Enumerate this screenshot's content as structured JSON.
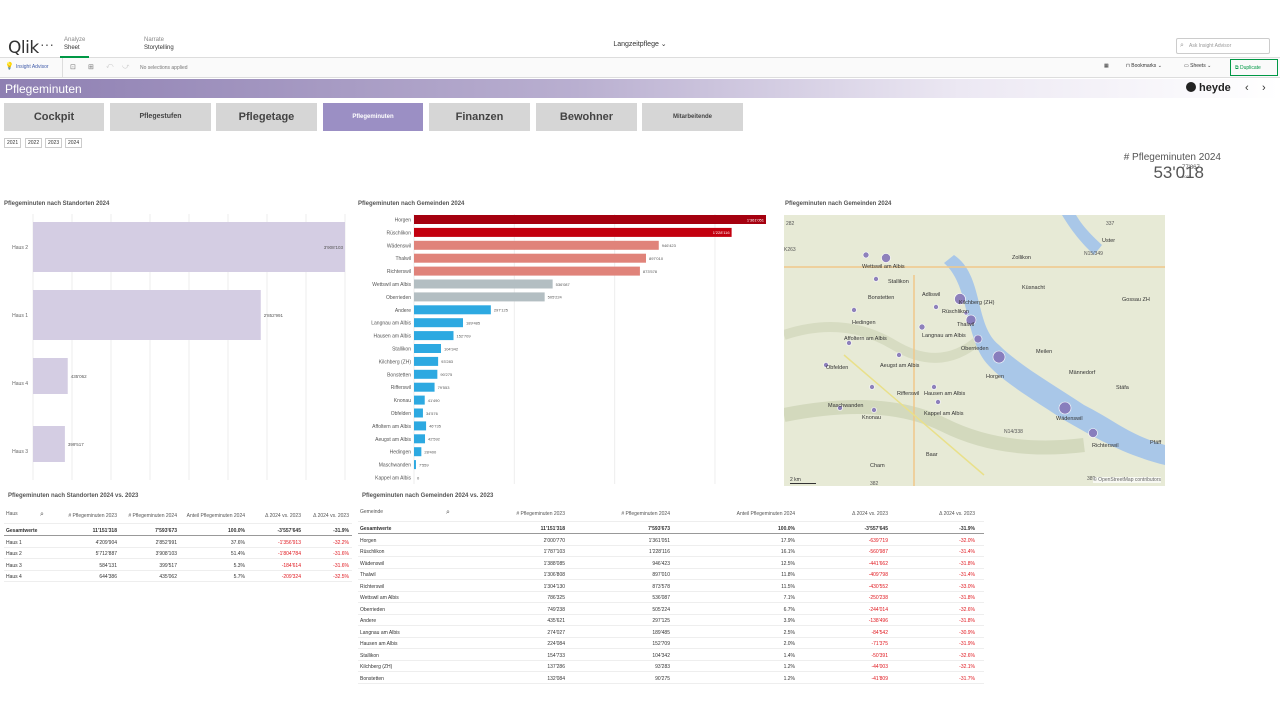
{
  "app": {
    "logo": "Qlik",
    "menu": "···",
    "title": "Langzeitpflege ⌄",
    "search_placeholder": "Ask Insight Advisor",
    "tabs": [
      {
        "top": "Analyze",
        "bottom": "Sheet"
      },
      {
        "top": "Narrate",
        "bottom": "Storytelling"
      }
    ]
  },
  "toolbar": {
    "insight": "Insight Advisor",
    "nosel": "No selections applied",
    "bookmarks": "Bookmarks ⌄",
    "sheets": "Sheets ⌄",
    "duplicate": "Duplicate"
  },
  "sheet": {
    "title": "Pflegeminuten",
    "brand": "heyde",
    "prev": "‹",
    "next": "›"
  },
  "nav": [
    "Cockpit",
    "Pflegestufen",
    "Pflegetage",
    "Pflegeminuten",
    "Finanzen",
    "Bewohner",
    "Mitarbeitende"
  ],
  "years": [
    "2021",
    "2022",
    "2023",
    "2024"
  ],
  "kpi": {
    "title": "# Pflegeminuten 2024",
    "value": "53'018",
    "sup": "77'867",
    "sub": "2023"
  },
  "titles": {
    "standorte": "Pflegeminuten nach Standorten 2024",
    "gemeinden": "Pflegeminuten nach Gemeinden 2024",
    "map": "Pflegeminuten nach Gemeinden 2024",
    "tbl1": "Pflegeminuten nach Standorten 2024 vs. 2023",
    "tbl2": "Pflegeminuten nach Gemeinden 2024 vs. 2023"
  },
  "chart_data": [
    {
      "type": "bar",
      "orientation": "horizontal",
      "title": "Pflegeminuten nach Standorten 2024",
      "categories": [
        "Haus 2",
        "Haus 1",
        "Haus 4",
        "Haus 3"
      ],
      "values": [
        3908103,
        2852991,
        435062,
        399517
      ],
      "labels": [
        "3'908'103",
        "2'852'991",
        "435'062",
        "399'517"
      ]
    },
    {
      "type": "bar",
      "orientation": "horizontal",
      "title": "Pflegeminuten nach Gemeinden 2024",
      "categories": [
        "Horgen",
        "Rüschlikon",
        "Wädenswil",
        "Thalwil",
        "Richterswil",
        "Wettswil am Albis",
        "Oberrieden",
        "Andere",
        "Langnau am Albis",
        "Hausen am Albis",
        "Stallikon",
        "Kilchberg (ZH)",
        "Bonstetten",
        "Rifferswil",
        "Knonau",
        "Obfelden",
        "Affoltern am Albis",
        "Aeugst am Albis",
        "Hedingen",
        "Maschwanden",
        "Kappel am Albis"
      ],
      "values": [
        1361051,
        1228116,
        946423,
        897010,
        873578,
        536087,
        505224,
        297125,
        189485,
        152709,
        104342,
        93283,
        90275,
        79553,
        41490,
        34576,
        46735,
        42592,
        28400,
        7559,
        0
      ],
      "labels": [
        "1'361'051",
        "1'228'116",
        "946'423",
        "897'010",
        "873'578",
        "536'087",
        "505'224",
        "297'125",
        "189'485",
        "152'709",
        "104'342",
        "93'283",
        "90'275",
        "79'553",
        "41'490",
        "34'576",
        "46'735",
        "42'592",
        "28'400",
        "7'559",
        "0"
      ],
      "colors": [
        "#a5000f",
        "#c3000f",
        "#e0837a",
        "#e0837a",
        "#e0837a",
        "#b3bec2",
        "#b3bec2",
        "#2da9e1",
        "#2da9e1",
        "#2da9e1",
        "#2da9e1",
        "#2da9e1",
        "#2da9e1",
        "#2da9e1",
        "#2da9e1",
        "#2da9e1",
        "#2da9e1",
        "#2da9e1",
        "#2da9e1",
        "#2da9e1",
        "#2da9e1"
      ]
    }
  ],
  "map": {
    "attribution": "© OpenStreetMap contributors",
    "scale": "2 km",
    "places": [
      "Zollikon",
      "Küsnacht",
      "Wettswil am Albis",
      "Stallikon",
      "Bonstetten",
      "Adliswil",
      "Kilchberg (ZH)",
      "Rüschlikon",
      "Thalwil",
      "Hedingen",
      "Langnau am Albis",
      "Oberrieden",
      "Affoltern am Albis",
      "Obfelden",
      "Aeugst am Albis",
      "Meilen",
      "Horgen",
      "Männedorf",
      "Stäfa",
      "Maschwanden",
      "Rifferswil",
      "Hausen am Albis",
      "Knonau",
      "Kappel am Albis",
      "Wädenswil",
      "Richterswil",
      "Baar",
      "Cham",
      "Gossau ZH",
      "Uster",
      "Pfäff"
    ]
  },
  "tbl1": {
    "headers": [
      "Haus",
      "# Pflegeminuten 2023",
      "# Pflegeminuten 2024",
      "Anteil Pflegeminuten 2024",
      "Δ 2024 vs. 2023",
      "Δ 2024 vs. 2023"
    ],
    "total": [
      "Gesamtwerte",
      "11'151'318",
      "7'593'673",
      "100.0%",
      "-3'557'645",
      "-31.9%"
    ],
    "rows": [
      [
        "Haus 1",
        "4'209'904",
        "2'852'991",
        "37.6%",
        "-1'356'913",
        "-32.2%"
      ],
      [
        "Haus 2",
        "5'712'887",
        "3'908'103",
        "51.4%",
        "-1'804'784",
        "-31.6%"
      ],
      [
        "Haus 3",
        "584'131",
        "399'517",
        "5.3%",
        "-184'614",
        "-31.6%"
      ],
      [
        "Haus 4",
        "644'386",
        "435'062",
        "5.7%",
        "-209'324",
        "-32.5%"
      ]
    ]
  },
  "tbl2": {
    "headers": [
      "Gemeinde",
      "# Pflegeminuten 2023",
      "# Pflegeminuten 2024",
      "Anteil Pflegeminuten 2024",
      "Δ 2024 vs. 2023",
      "Δ 2024 vs. 2023"
    ],
    "total": [
      "Gesamtwerte",
      "11'151'318",
      "7'593'673",
      "100.0%",
      "-3'557'645",
      "-31.9%"
    ],
    "rows": [
      [
        "Horgen",
        "2'000'770",
        "1'361'051",
        "17.9%",
        "-639'719",
        "-32.0%"
      ],
      [
        "Rüschlikon",
        "1'787'103",
        "1'228'116",
        "16.1%",
        "-560'987",
        "-31.4%"
      ],
      [
        "Wädenswil",
        "1'388'085",
        "946'423",
        "12.5%",
        "-441'662",
        "-31.8%"
      ],
      [
        "Thalwil",
        "1'306'808",
        "897'010",
        "11.8%",
        "-409'798",
        "-31.4%"
      ],
      [
        "Richterswil",
        "1'304'130",
        "873'578",
        "11.5%",
        "-430'552",
        "-33.0%"
      ],
      [
        "Wettswil am Albis",
        "786'325",
        "536'087",
        "7.1%",
        "-250'238",
        "-31.8%"
      ],
      [
        "Oberrieden",
        "749'238",
        "505'224",
        "6.7%",
        "-244'014",
        "-32.6%"
      ],
      [
        "Andere",
        "435'621",
        "297'125",
        "3.9%",
        "-138'496",
        "-31.8%"
      ],
      [
        "Langnau am Albis",
        "274'027",
        "189'485",
        "2.5%",
        "-84'542",
        "-30.9%"
      ],
      [
        "Hausen am Albis",
        "224'084",
        "152'709",
        "2.0%",
        "-71'375",
        "-31.9%"
      ],
      [
        "Stallikon",
        "154'733",
        "104'342",
        "1.4%",
        "-50'391",
        "-32.6%"
      ],
      [
        "Kilchberg (ZH)",
        "137'286",
        "93'283",
        "1.2%",
        "-44'003",
        "-32.1%"
      ],
      [
        "Bonstetten",
        "132'084",
        "90'275",
        "1.2%",
        "-41'809",
        "-31.7%"
      ]
    ]
  }
}
